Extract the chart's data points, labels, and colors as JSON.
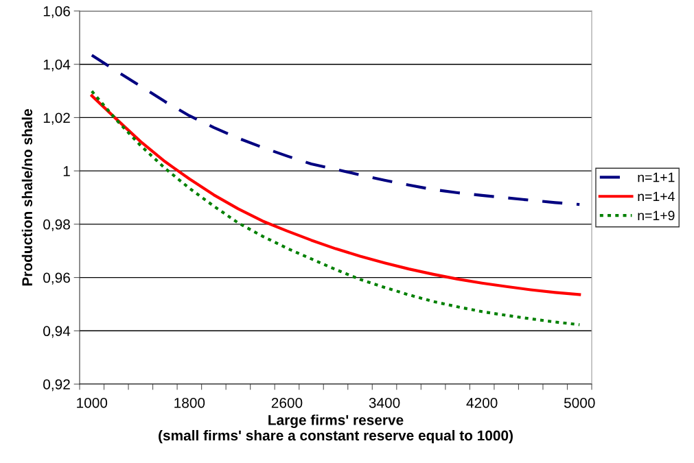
{
  "chart_data": {
    "type": "line",
    "xlabel": "Large firms' reserve\n(small firms' share a constant reserve equal to 1000)",
    "ylabel": "Production shale/no shale",
    "x": [
      1000,
      1200,
      1400,
      1600,
      1800,
      2000,
      2200,
      2400,
      2600,
      2800,
      3000,
      3200,
      3400,
      3600,
      3800,
      4000,
      4200,
      4400,
      4600,
      4800,
      5000
    ],
    "series": [
      {
        "name": "n=1+1",
        "color": "#000080",
        "line_style": "dashed",
        "values": [
          1.0434,
          1.0375,
          1.0318,
          1.026,
          1.0207,
          1.0163,
          1.0123,
          1.0088,
          1.0056,
          1.0026,
          1.0006,
          0.9985,
          0.9965,
          0.9947,
          0.993,
          0.9918,
          0.9908,
          0.9899,
          0.989,
          0.9881,
          0.9874
        ]
      },
      {
        "name": "n=1+4",
        "color": "#ff0000",
        "line_style": "solid",
        "values": [
          1.0282,
          1.0195,
          1.011,
          1.0035,
          0.997,
          0.991,
          0.9858,
          0.9812,
          0.9775,
          0.974,
          0.9708,
          0.968,
          0.9655,
          0.9632,
          0.9612,
          0.9594,
          0.9579,
          0.9566,
          0.9554,
          0.9544,
          0.9536
        ]
      },
      {
        "name": "n=1+9",
        "color": "#008000",
        "line_style": "dotted",
        "values": [
          1.0299,
          1.0192,
          1.0095,
          1.001,
          0.9935,
          0.9868,
          0.9805,
          0.9755,
          0.971,
          0.967,
          0.963,
          0.9593,
          0.9563,
          0.9535,
          0.951,
          0.949,
          0.9472,
          0.9458,
          0.9445,
          0.9433,
          0.9423
        ]
      }
    ],
    "xlim": [
      900,
      5100
    ],
    "xticks": [
      {
        "value": 900,
        "label": null
      },
      {
        "value": 1000,
        "label": "1000"
      },
      {
        "value": 1100,
        "label": null
      },
      {
        "value": 1300,
        "label": null
      },
      {
        "value": 1500,
        "label": null
      },
      {
        "value": 1700,
        "label": null
      },
      {
        "value": 1800,
        "label": "1800"
      },
      {
        "value": 1900,
        "label": null
      },
      {
        "value": 2100,
        "label": null
      },
      {
        "value": 2300,
        "label": null
      },
      {
        "value": 2500,
        "label": null
      },
      {
        "value": 2600,
        "label": "2600"
      },
      {
        "value": 2700,
        "label": null
      },
      {
        "value": 2900,
        "label": null
      },
      {
        "value": 3100,
        "label": null
      },
      {
        "value": 3300,
        "label": null
      },
      {
        "value": 3400,
        "label": "3400"
      },
      {
        "value": 3500,
        "label": null
      },
      {
        "value": 3700,
        "label": null
      },
      {
        "value": 3900,
        "label": null
      },
      {
        "value": 4100,
        "label": null
      },
      {
        "value": 4200,
        "label": "4200"
      },
      {
        "value": 4300,
        "label": null
      },
      {
        "value": 4500,
        "label": null
      },
      {
        "value": 4700,
        "label": null
      },
      {
        "value": 4900,
        "label": null
      },
      {
        "value": 5000,
        "label": "5000"
      },
      {
        "value": 5100,
        "label": null
      }
    ],
    "ylim": [
      0.92,
      1.06
    ],
    "yticks": [
      {
        "value": 0.92,
        "label": "0,92"
      },
      {
        "value": 0.94,
        "label": "0,94"
      },
      {
        "value": 0.96,
        "label": "0,96"
      },
      {
        "value": 0.98,
        "label": "0,98"
      },
      {
        "value": 1,
        "label": "1"
      },
      {
        "value": 1.02,
        "label": "1,02"
      },
      {
        "value": 1.04,
        "label": "1,04"
      },
      {
        "value": 1.06,
        "label": "1,06"
      }
    ],
    "grid": "y",
    "legend": "right",
    "marker": "none"
  }
}
